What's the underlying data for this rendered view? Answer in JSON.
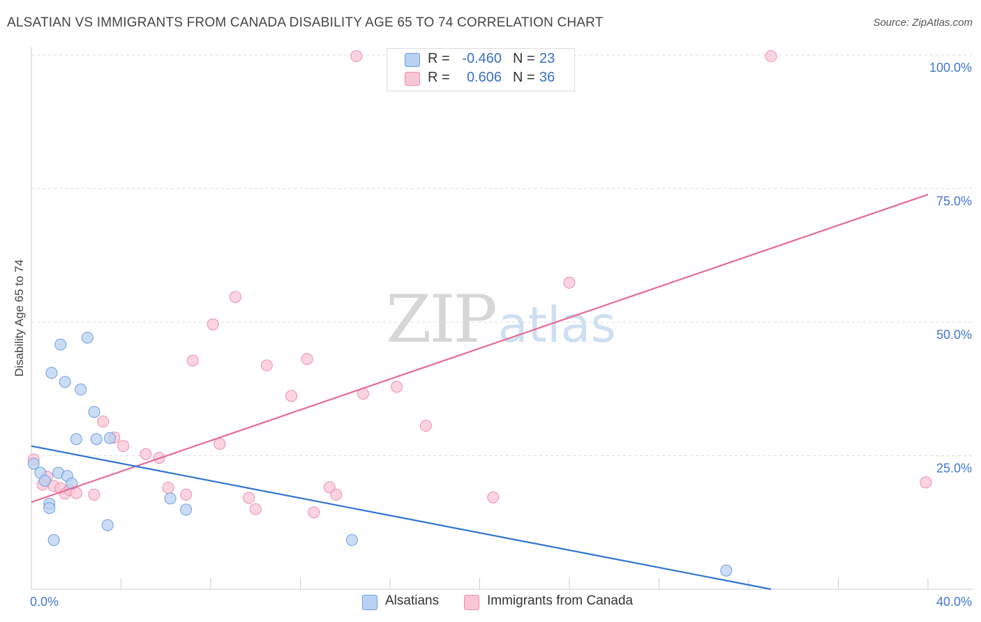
{
  "header": {
    "title": "ALSATIAN VS IMMIGRANTS FROM CANADA DISABILITY AGE 65 TO 74 CORRELATION CHART",
    "source": "Source: ZipAtlas.com"
  },
  "legend": {
    "rows": [
      {
        "r_label": "R =",
        "r_value": "-0.460",
        "n_label": "N =",
        "n_value": "23"
      },
      {
        "r_label": "R =",
        "r_value": "0.606",
        "n_label": "N =",
        "n_value": "36"
      }
    ]
  },
  "watermark": {
    "zip": "ZIP",
    "atlas": "atlas"
  },
  "colors": {
    "alsatians_fill": "#b8d2f2",
    "alsatians_stroke": "#6d9ee0",
    "alsatians_line": "#2f74d0",
    "canada_fill": "#f9c6d6",
    "canada_stroke": "#ec8fab",
    "canada_line": "#e56a94",
    "axis_label": "#4477cc",
    "grid": "#dddddd"
  },
  "chart_data": {
    "type": "scatter",
    "title": "ALSATIAN VS IMMIGRANTS FROM CANADA DISABILITY AGE 65 TO 74 CORRELATION CHART",
    "xlabel": "",
    "ylabel": "Disability Age 65 to 74",
    "xlim": [
      0,
      40
    ],
    "ylim": [
      0,
      100
    ],
    "x_tick_labels": [
      "0.0%",
      "40.0%"
    ],
    "y_ticks": [
      25,
      50,
      75,
      100
    ],
    "y_tick_labels": [
      "25.0%",
      "50.0%",
      "75.0%",
      "100.0%"
    ],
    "grid": true,
    "legend_position": "bottom",
    "series": [
      {
        "name": "Alsatians",
        "r": -0.46,
        "n": 23,
        "trend": {
          "x": [
            0,
            33
          ],
          "y": [
            26.8,
            0
          ]
        },
        "x": [
          0.1,
          0.4,
          0.6,
          0.8,
          0.8,
          0.9,
          1.0,
          1.2,
          1.3,
          1.5,
          1.6,
          1.8,
          2.0,
          2.2,
          2.5,
          2.8,
          2.9,
          3.4,
          3.5,
          6.2,
          6.9,
          14.3,
          31.0
        ],
        "y": [
          23.5,
          21.8,
          20.3,
          16.0,
          15.2,
          40.5,
          9.2,
          21.8,
          45.8,
          38.8,
          21.2,
          19.8,
          28.1,
          37.4,
          47.1,
          33.2,
          28.1,
          12.0,
          28.3,
          17.0,
          14.9,
          9.2,
          3.5
        ]
      },
      {
        "name": "Immigrants from Canada",
        "r": 0.606,
        "n": 36,
        "trend": {
          "x": [
            0,
            40
          ],
          "y": [
            16.3,
            73.9
          ]
        },
        "x": [
          0.1,
          0.5,
          0.7,
          1.0,
          1.3,
          1.5,
          1.7,
          2.0,
          2.8,
          3.2,
          3.7,
          4.1,
          5.1,
          5.7,
          6.1,
          6.9,
          7.2,
          8.1,
          8.4,
          9.1,
          9.7,
          10.0,
          10.5,
          11.6,
          12.3,
          12.6,
          13.3,
          13.6,
          14.5,
          14.8,
          16.3,
          17.6,
          20.6,
          24.0,
          33.0,
          39.9
        ],
        "y": [
          24.3,
          19.6,
          21.1,
          19.3,
          18.9,
          17.9,
          18.6,
          18.0,
          17.7,
          31.4,
          28.4,
          26.8,
          25.3,
          24.6,
          19.0,
          17.7,
          42.8,
          49.6,
          27.2,
          54.7,
          17.1,
          15.0,
          41.9,
          36.2,
          43.1,
          14.4,
          19.1,
          17.7,
          99.8,
          36.6,
          37.9,
          30.6,
          17.2,
          57.4,
          99.8,
          20.0
        ]
      }
    ]
  }
}
